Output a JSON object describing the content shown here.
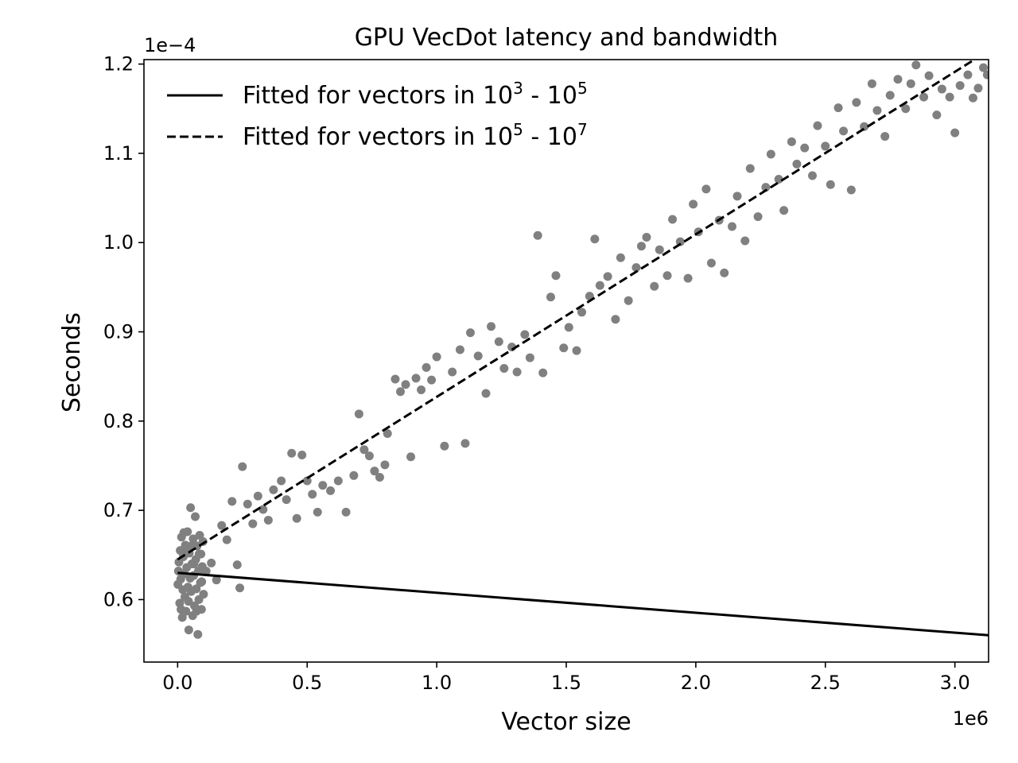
{
  "chart_data": {
    "type": "scatter",
    "title": "GPU VecDot latency and bandwidth",
    "xlabel": "Vector size",
    "ylabel": "Seconds",
    "x_offset_label": "1e6",
    "y_offset_label": "1e−4",
    "x_scale": 1000000,
    "y_scale": 0.0001,
    "xlim": [
      -130000,
      3130000
    ],
    "ylim": [
      5.3e-05,
      0.0001205
    ],
    "xticks": [
      0,
      500000,
      1000000,
      1500000,
      2000000,
      2500000,
      3000000
    ],
    "xtick_labels": [
      "0.0",
      "0.5",
      "1.0",
      "1.5",
      "2.0",
      "2.5",
      "3.0"
    ],
    "yticks": [
      6e-05,
      7e-05,
      8e-05,
      9e-05,
      0.0001,
      0.00011,
      0.00012
    ],
    "ytick_labels": [
      "0.6",
      "0.7",
      "0.8",
      "0.9",
      "1.0",
      "1.1",
      "1.2"
    ],
    "grid": false,
    "legend_position": "top-left",
    "point_color": "#808080",
    "line_color": "#000000",
    "series": [
      {
        "kind": "scatter",
        "points": [
          [
            1000,
            6.17e-05
          ],
          [
            5000,
            6.42e-05
          ],
          [
            8000,
            5.96e-05
          ],
          [
            10000,
            6.55e-05
          ],
          [
            12000,
            6.23e-05
          ],
          [
            15000,
            6.7e-05
          ],
          [
            18000,
            5.8e-05
          ],
          [
            20000,
            6.11e-05
          ],
          [
            22000,
            6.48e-05
          ],
          [
            25000,
            6.29e-05
          ],
          [
            28000,
            6.03e-05
          ],
          [
            30000,
            6.61e-05
          ],
          [
            32000,
            5.87e-05
          ],
          [
            35000,
            6.36e-05
          ],
          [
            38000,
            6.76e-05
          ],
          [
            40000,
            6.14e-05
          ],
          [
            42000,
            5.98e-05
          ],
          [
            45000,
            6.52e-05
          ],
          [
            48000,
            6.24e-05
          ],
          [
            50000,
            7.03e-05
          ],
          [
            52000,
            6.09e-05
          ],
          [
            55000,
            6.4e-05
          ],
          [
            58000,
            5.82e-05
          ],
          [
            60000,
            6.68e-05
          ],
          [
            62000,
            6.27e-05
          ],
          [
            65000,
            5.93e-05
          ],
          [
            68000,
            6.93e-05
          ],
          [
            70000,
            6.45e-05
          ],
          [
            72000,
            6.12e-05
          ],
          [
            75000,
            6.6e-05
          ],
          [
            78000,
            5.61e-05
          ],
          [
            80000,
            6.32e-05
          ],
          [
            82000,
            6e-05
          ],
          [
            85000,
            6.72e-05
          ],
          [
            88000,
            6.19e-05
          ],
          [
            90000,
            6.51e-05
          ],
          [
            92000,
            5.89e-05
          ],
          [
            95000,
            6.37e-05
          ],
          [
            98000,
            6.65e-05
          ],
          [
            100000,
            6.06e-05
          ],
          [
            3000,
            6.32e-05
          ],
          [
            13000,
            5.89e-05
          ],
          [
            24000,
            6.75e-05
          ],
          [
            33000,
            6.55e-05
          ],
          [
            43000,
            5.66e-05
          ],
          [
            53000,
            6.6e-05
          ],
          [
            63000,
            6.4e-05
          ],
          [
            73000,
            5.87e-05
          ],
          [
            83000,
            6.51e-05
          ],
          [
            93000,
            6.2e-05
          ],
          [
            110000,
            6.32e-05
          ],
          [
            130000,
            6.41e-05
          ],
          [
            150000,
            6.22e-05
          ],
          [
            170000,
            6.83e-05
          ],
          [
            190000,
            6.67e-05
          ],
          [
            210000,
            7.1e-05
          ],
          [
            230000,
            6.39e-05
          ],
          [
            240000,
            6.13e-05
          ],
          [
            250000,
            7.49e-05
          ],
          [
            270000,
            7.07e-05
          ],
          [
            290000,
            6.85e-05
          ],
          [
            310000,
            7.16e-05
          ],
          [
            330000,
            7.01e-05
          ],
          [
            350000,
            6.89e-05
          ],
          [
            370000,
            7.23e-05
          ],
          [
            400000,
            7.33e-05
          ],
          [
            420000,
            7.12e-05
          ],
          [
            440000,
            7.64e-05
          ],
          [
            460000,
            6.91e-05
          ],
          [
            480000,
            7.62e-05
          ],
          [
            500000,
            7.33e-05
          ],
          [
            520000,
            7.18e-05
          ],
          [
            540000,
            6.98e-05
          ],
          [
            560000,
            7.28e-05
          ],
          [
            590000,
            7.22e-05
          ],
          [
            620000,
            7.33e-05
          ],
          [
            650000,
            6.98e-05
          ],
          [
            680000,
            7.39e-05
          ],
          [
            700000,
            8.08e-05
          ],
          [
            720000,
            7.68e-05
          ],
          [
            740000,
            7.61e-05
          ],
          [
            760000,
            7.44e-05
          ],
          [
            780000,
            7.37e-05
          ],
          [
            800000,
            7.51e-05
          ],
          [
            810000,
            7.86e-05
          ],
          [
            840000,
            8.47e-05
          ],
          [
            860000,
            8.33e-05
          ],
          [
            880000,
            8.41e-05
          ],
          [
            900000,
            7.6e-05
          ],
          [
            920000,
            8.48e-05
          ],
          [
            940000,
            8.35e-05
          ],
          [
            960000,
            8.6e-05
          ],
          [
            980000,
            8.46e-05
          ],
          [
            1000000,
            8.72e-05
          ],
          [
            1030000,
            7.72e-05
          ],
          [
            1060000,
            8.55e-05
          ],
          [
            1090000,
            8.8e-05
          ],
          [
            1110000,
            7.75e-05
          ],
          [
            1130000,
            8.99e-05
          ],
          [
            1160000,
            8.73e-05
          ],
          [
            1190000,
            8.31e-05
          ],
          [
            1210000,
            9.06e-05
          ],
          [
            1240000,
            8.89e-05
          ],
          [
            1260000,
            8.59e-05
          ],
          [
            1290000,
            8.83e-05
          ],
          [
            1310000,
            8.55e-05
          ],
          [
            1340000,
            8.97e-05
          ],
          [
            1360000,
            8.71e-05
          ],
          [
            1390000,
            0.0001008
          ],
          [
            1410000,
            8.54e-05
          ],
          [
            1440000,
            9.39e-05
          ],
          [
            1460000,
            9.63e-05
          ],
          [
            1490000,
            8.82e-05
          ],
          [
            1510000,
            9.05e-05
          ],
          [
            1540000,
            8.79e-05
          ],
          [
            1560000,
            9.22e-05
          ],
          [
            1590000,
            9.4e-05
          ],
          [
            1610000,
            0.0001004
          ],
          [
            1630000,
            9.52e-05
          ],
          [
            1660000,
            9.62e-05
          ],
          [
            1690000,
            9.14e-05
          ],
          [
            1710000,
            9.83e-05
          ],
          [
            1740000,
            9.35e-05
          ],
          [
            1770000,
            9.72e-05
          ],
          [
            1790000,
            9.96e-05
          ],
          [
            1810000,
            0.0001006
          ],
          [
            1840000,
            9.51e-05
          ],
          [
            1860000,
            9.92e-05
          ],
          [
            1890000,
            9.63e-05
          ],
          [
            1910000,
            0.0001026
          ],
          [
            1940000,
            0.0001001
          ],
          [
            1970000,
            9.6e-05
          ],
          [
            1990000,
            0.0001043
          ],
          [
            2010000,
            0.0001012
          ],
          [
            2040000,
            0.000106
          ],
          [
            2060000,
            9.77e-05
          ],
          [
            2090000,
            0.0001025
          ],
          [
            2110000,
            9.66e-05
          ],
          [
            2140000,
            0.0001018
          ],
          [
            2160000,
            0.0001052
          ],
          [
            2190000,
            0.0001002
          ],
          [
            2210000,
            0.0001083
          ],
          [
            2240000,
            0.0001029
          ],
          [
            2270000,
            0.0001062
          ],
          [
            2290000,
            0.0001099
          ],
          [
            2320000,
            0.0001071
          ],
          [
            2340000,
            0.0001036
          ],
          [
            2370000,
            0.0001113
          ],
          [
            2390000,
            0.0001088
          ],
          [
            2420000,
            0.0001106
          ],
          [
            2450000,
            0.0001075
          ],
          [
            2470000,
            0.0001131
          ],
          [
            2500000,
            0.0001108
          ],
          [
            2520000,
            0.0001065
          ],
          [
            2550000,
            0.0001151
          ],
          [
            2570000,
            0.0001125
          ],
          [
            2600000,
            0.0001059
          ],
          [
            2620000,
            0.0001157
          ],
          [
            2650000,
            0.000113
          ],
          [
            2680000,
            0.0001178
          ],
          [
            2700000,
            0.0001148
          ],
          [
            2730000,
            0.0001119
          ],
          [
            2750000,
            0.0001165
          ],
          [
            2780000,
            0.0001183
          ],
          [
            2810000,
            0.000115
          ],
          [
            2830000,
            0.0001178
          ],
          [
            2850000,
            0.0001199
          ],
          [
            2880000,
            0.0001163
          ],
          [
            2900000,
            0.0001187
          ],
          [
            2930000,
            0.0001143
          ],
          [
            2950000,
            0.0001172
          ],
          [
            2980000,
            0.0001163
          ],
          [
            3000000,
            0.0001123
          ],
          [
            3020000,
            0.0001176
          ],
          [
            3050000,
            0.0001188
          ],
          [
            3070000,
            0.0001162
          ],
          [
            3090000,
            0.0001173
          ],
          [
            3110000,
            0.0001196
          ],
          [
            3125000,
            0.0001188
          ]
        ]
      },
      {
        "kind": "line",
        "name": "Fitted for vectors in 10^3 - 10^5",
        "style": "solid",
        "points": [
          [
            0,
            6.3e-05
          ],
          [
            3130000,
            5.6e-05
          ]
        ]
      },
      {
        "kind": "line",
        "name": "Fitted for vectors in 10^5 - 10^7",
        "style": "dashed",
        "points": [
          [
            0,
            6.45e-05
          ],
          [
            3130000,
            0.0001215
          ]
        ]
      }
    ],
    "legend": [
      {
        "style": "solid",
        "text": "Fitted for vectors in 10",
        "sup1": "3",
        "mid": " - 10",
        "sup2": "5"
      },
      {
        "style": "dashed",
        "text": "Fitted for vectors in 10",
        "sup1": "5",
        "mid": " - 10",
        "sup2": "7"
      }
    ]
  }
}
